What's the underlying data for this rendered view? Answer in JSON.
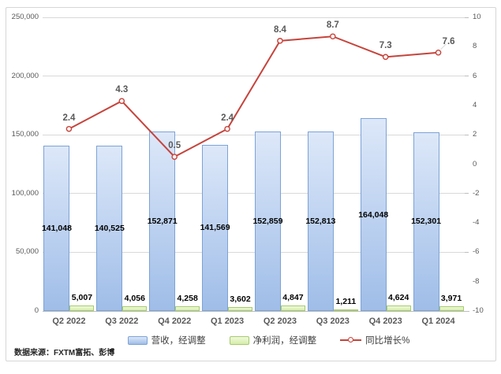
{
  "chart_data": {
    "type": "combo",
    "title": "",
    "categories": [
      "Q2 2022",
      "Q3 2022",
      "Q4 2022",
      "Q1 2023",
      "Q2 2023",
      "Q3 2023",
      "Q4 2023",
      "Q1 2024"
    ],
    "series": [
      {
        "name": "营收，经调整",
        "type": "bar",
        "axis": "left",
        "values": [
          141048,
          140525,
          152871,
          141569,
          152859,
          152813,
          164048,
          152301
        ],
        "labels": [
          "141,048",
          "140,525",
          "152,871",
          "141,569",
          "152,859",
          "152,813",
          "164,048",
          "152,301"
        ],
        "fill_top": "#dde8f9",
        "fill_bottom": "#9fbde8",
        "border": "#7da3d6"
      },
      {
        "name": "净利润，经调整",
        "type": "bar",
        "axis": "left",
        "values": [
          5007,
          4056,
          4258,
          3602,
          4847,
          1211,
          4624,
          3971
        ],
        "labels": [
          "5,007",
          "4,056",
          "4,258",
          "3,602",
          "4,847",
          "1,211",
          "4,624",
          "3,971"
        ],
        "fill_top": "#f0f9dd",
        "fill_bottom": "#d5eda9",
        "border": "#a6cb6d"
      },
      {
        "name": "同比增长%",
        "type": "line",
        "axis": "right",
        "values": [
          2.4,
          4.3,
          0.5,
          2.4,
          8.4,
          8.7,
          7.3,
          7.6
        ],
        "labels": [
          "2.4",
          "4.3",
          "0.5",
          "2.4",
          "8.4",
          "8.7",
          "7.3",
          "7.6"
        ],
        "color": "#c5443c",
        "marker_fill": "#fdf4f3"
      }
    ],
    "left_axis": {
      "min": 0,
      "max": 250000,
      "step": 50000,
      "tick_labels": [
        "0",
        "50,000",
        "100,000",
        "150,000",
        "200,000",
        "250,000"
      ]
    },
    "right_axis": {
      "min": -10,
      "max": 10,
      "step": 2,
      "tick_labels": [
        "10",
        "8",
        "6",
        "4",
        "2",
        "0",
        "-2",
        "-4",
        "-6",
        "-8",
        "-10"
      ],
      "tick_marks": [
        10,
        6,
        2,
        -2,
        -6,
        -10
      ]
    },
    "legend_position": "bottom",
    "grid": "horizontal"
  },
  "source_note": "数据来源：FXTM富拓、彭博",
  "colors": {
    "background": "#ffffff",
    "frame_border": "#d6d6d6",
    "grid": "#d9d9d9",
    "axis_line": "#bdbdbd",
    "tick_text": "#595959",
    "category_text": "#595959",
    "bar_label_text": "#000000",
    "line_label_text": "#595959",
    "legend_text": "#3d3d3d"
  }
}
